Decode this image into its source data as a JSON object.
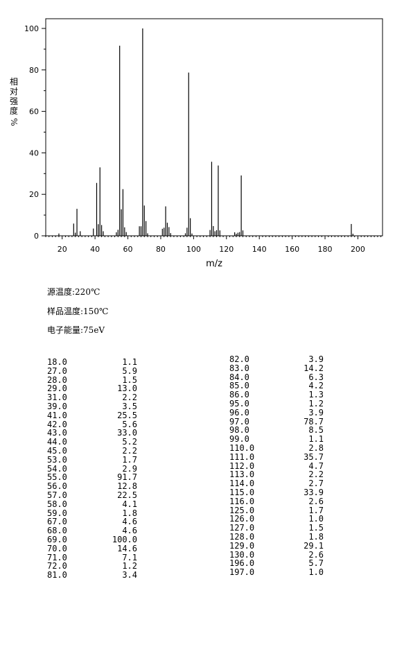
{
  "chart_data": {
    "type": "bar",
    "xlabel": "m/z",
    "ylabel": "相对强度%",
    "ylabel_chars": [
      "相",
      "对",
      "强",
      "度",
      "%"
    ],
    "xlim": [
      10,
      215
    ],
    "ylim": [
      0,
      100
    ],
    "xticks": [
      20,
      40,
      60,
      80,
      100,
      120,
      140,
      160,
      180,
      200
    ],
    "yticks": [
      0,
      20,
      40,
      60,
      80,
      100
    ],
    "grid": false,
    "peaks": [
      [
        18,
        1.1
      ],
      [
        27,
        5.9
      ],
      [
        28,
        1.5
      ],
      [
        29,
        13.0
      ],
      [
        31,
        2.2
      ],
      [
        39,
        3.5
      ],
      [
        41,
        25.5
      ],
      [
        42,
        5.6
      ],
      [
        43,
        33.0
      ],
      [
        44,
        5.2
      ],
      [
        45,
        2.2
      ],
      [
        53,
        1.7
      ],
      [
        54,
        2.9
      ],
      [
        55,
        91.7
      ],
      [
        56,
        12.8
      ],
      [
        57,
        22.5
      ],
      [
        58,
        4.1
      ],
      [
        59,
        1.8
      ],
      [
        67,
        4.6
      ],
      [
        68,
        4.6
      ],
      [
        69,
        100.0
      ],
      [
        70,
        14.6
      ],
      [
        71,
        7.1
      ],
      [
        72,
        1.2
      ],
      [
        81,
        3.4
      ],
      [
        82,
        3.9
      ],
      [
        83,
        14.2
      ],
      [
        84,
        6.3
      ],
      [
        85,
        4.2
      ],
      [
        86,
        1.3
      ],
      [
        95,
        1.2
      ],
      [
        96,
        3.9
      ],
      [
        97,
        78.7
      ],
      [
        98,
        8.5
      ],
      [
        99,
        1.1
      ],
      [
        110,
        2.8
      ],
      [
        111,
        35.7
      ],
      [
        112,
        4.7
      ],
      [
        113,
        2.2
      ],
      [
        114,
        2.7
      ],
      [
        115,
        33.9
      ],
      [
        116,
        2.6
      ],
      [
        125,
        1.7
      ],
      [
        126,
        1.0
      ],
      [
        127,
        1.5
      ],
      [
        128,
        1.8
      ],
      [
        129,
        29.1
      ],
      [
        130,
        2.6
      ],
      [
        196,
        5.7
      ],
      [
        197,
        1.0
      ]
    ]
  },
  "conditions": {
    "source_temp": "源温度:220℃",
    "sample_temp": "样品温度:150℃",
    "electron_energy": "电子能量:75eV"
  },
  "peak_table": {
    "left": [
      [
        "18.0",
        "1.1"
      ],
      [
        "27.0",
        "5.9"
      ],
      [
        "28.0",
        "1.5"
      ],
      [
        "29.0",
        "13.0"
      ],
      [
        "31.0",
        "2.2"
      ],
      [
        "39.0",
        "3.5"
      ],
      [
        "41.0",
        "25.5"
      ],
      [
        "42.0",
        "5.6"
      ],
      [
        "43.0",
        "33.0"
      ],
      [
        "44.0",
        "5.2"
      ],
      [
        "45.0",
        "2.2"
      ],
      [
        "53.0",
        "1.7"
      ],
      [
        "54.0",
        "2.9"
      ],
      [
        "55.0",
        "91.7"
      ],
      [
        "56.0",
        "12.8"
      ],
      [
        "57.0",
        "22.5"
      ],
      [
        "58.0",
        "4.1"
      ],
      [
        "59.0",
        "1.8"
      ],
      [
        "67.0",
        "4.6"
      ],
      [
        "68.0",
        "4.6"
      ],
      [
        "69.0",
        "100.0"
      ],
      [
        "70.0",
        "14.6"
      ],
      [
        "71.0",
        "7.1"
      ],
      [
        "72.0",
        "1.2"
      ],
      [
        "81.0",
        "3.4"
      ]
    ],
    "right": [
      [
        "82.0",
        "3.9"
      ],
      [
        "83.0",
        "14.2"
      ],
      [
        "84.0",
        "6.3"
      ],
      [
        "85.0",
        "4.2"
      ],
      [
        "86.0",
        "1.3"
      ],
      [
        "95.0",
        "1.2"
      ],
      [
        "96.0",
        "3.9"
      ],
      [
        "97.0",
        "78.7"
      ],
      [
        "98.0",
        "8.5"
      ],
      [
        "99.0",
        "1.1"
      ],
      [
        "110.0",
        "2.8"
      ],
      [
        "111.0",
        "35.7"
      ],
      [
        "112.0",
        "4.7"
      ],
      [
        "113.0",
        "2.2"
      ],
      [
        "114.0",
        "2.7"
      ],
      [
        "115.0",
        "33.9"
      ],
      [
        "116.0",
        "2.6"
      ],
      [
        "125.0",
        "1.7"
      ],
      [
        "126.0",
        "1.0"
      ],
      [
        "127.0",
        "1.5"
      ],
      [
        "128.0",
        "1.8"
      ],
      [
        "129.0",
        "29.1"
      ],
      [
        "130.0",
        "2.6"
      ],
      [
        "196.0",
        "5.7"
      ],
      [
        "197.0",
        "1.0"
      ]
    ]
  }
}
